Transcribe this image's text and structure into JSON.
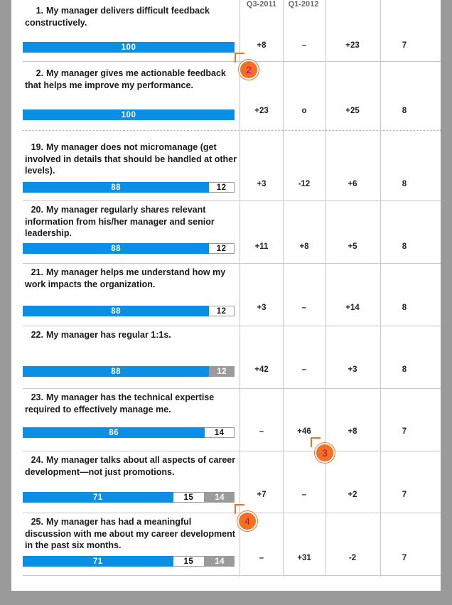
{
  "columns": {
    "col2": "Q3-2011",
    "col3": "Q1-2012"
  },
  "rows": [
    {
      "num": "1.",
      "text": "My manager delivers difficult feedback constructively.",
      "bar": [
        "100"
      ],
      "c1": "+8",
      "c2": "–",
      "c3": "+23",
      "c4": "7"
    },
    {
      "num": "2.",
      "text": "My manager gives me actionable feedback that helps me improve my performance.",
      "bar": [
        "100"
      ],
      "c1": "+23",
      "c2": "o",
      "c3": "+25",
      "c4": "8"
    },
    {
      "num": "19.",
      "text": "My manager does not micromanage (get involved in details that should be handled at other levels).",
      "bar": [
        "88",
        "12"
      ],
      "c1": "+3",
      "c2": "-12",
      "c3": "+6",
      "c4": "8"
    },
    {
      "num": "20.",
      "text": "My manager regularly shares relevant information from his/her manager and senior leadership.",
      "bar": [
        "88",
        "12"
      ],
      "c1": "+11",
      "c2": "+8",
      "c3": "+5",
      "c4": "8"
    },
    {
      "num": "21.",
      "text": "My manager helps me understand how my work impacts the organization.",
      "bar": [
        "88",
        "12"
      ],
      "c1": "+3",
      "c2": "–",
      "c3": "+14",
      "c4": "8"
    },
    {
      "num": "22.",
      "text": "My manager has regular 1:1s.",
      "bar": [
        "88",
        "12"
      ],
      "c1": "+42",
      "c2": "–",
      "c3": "+3",
      "c4": "8"
    },
    {
      "num": "23.",
      "text": "My manager has the technical expertise required to effectively manage me.",
      "bar": [
        "86",
        "14"
      ],
      "c1": "–",
      "c2": "+46",
      "c3": "+8",
      "c4": "7"
    },
    {
      "num": "24.",
      "text": "My manager talks about all aspects of career development—not just promotions.",
      "bar": [
        "71",
        "15",
        "14"
      ],
      "c1": "+7",
      "c2": "–",
      "c3": "+2",
      "c4": "7"
    },
    {
      "num": "25.",
      "text": "My manager has had a meaningful discussion with me about my career development in the past six months.",
      "bar": [
        "71",
        "15",
        "14"
      ],
      "c1": "–",
      "c2": "+31",
      "c3": "-2",
      "c4": "7"
    }
  ],
  "markers": [
    "2",
    "3",
    "4"
  ]
}
